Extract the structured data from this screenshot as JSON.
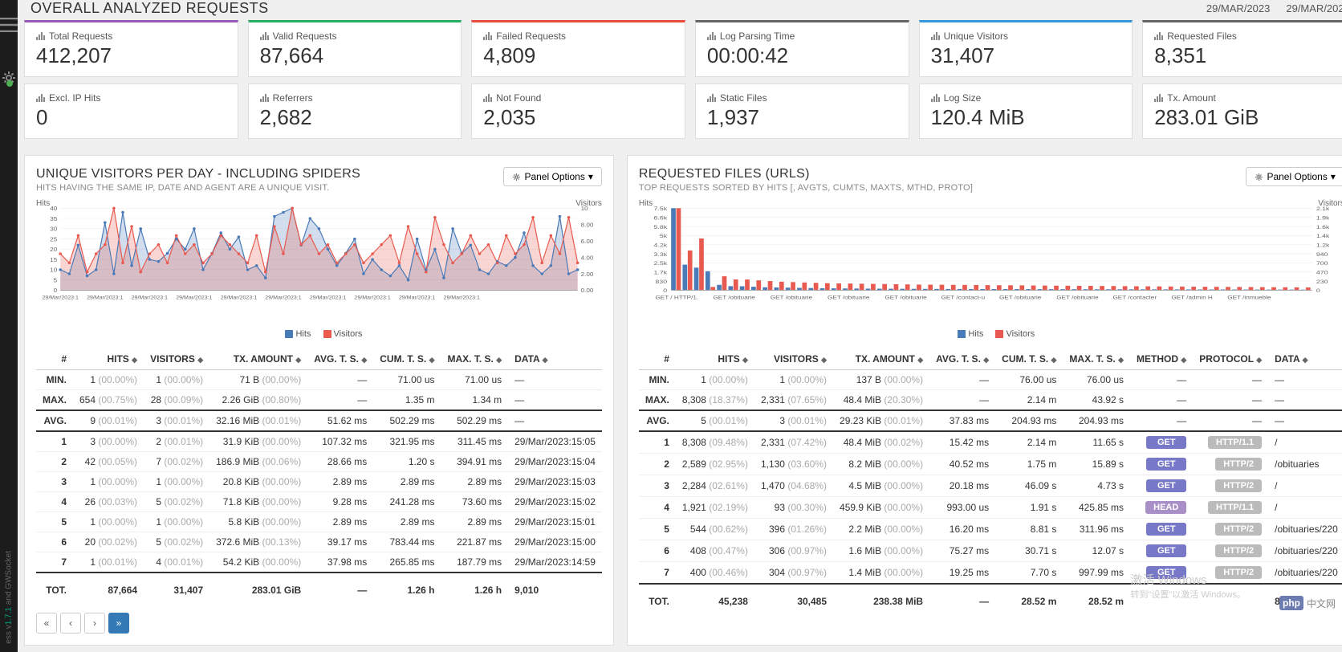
{
  "colors": {
    "sidebar_bg": "#1c1c1c",
    "hits": "#4a7ab8",
    "visitors": "#e85a4f",
    "grid": "#e8e8e8",
    "card_borders": [
      "#9b59b6",
      "#27ae60",
      "#e74c3c",
      "#666666",
      "#3498db",
      "#666666"
    ]
  },
  "header": {
    "title": "OVERALL ANALYZED REQUESTS",
    "date_from": "29/MAR/2023",
    "date_to": "29/MAR/2023"
  },
  "stats": [
    [
      {
        "label": "Total Requests",
        "value": "412,207"
      },
      {
        "label": "Excl. IP Hits",
        "value": "0"
      }
    ],
    [
      {
        "label": "Valid Requests",
        "value": "87,664"
      },
      {
        "label": "Referrers",
        "value": "2,682"
      }
    ],
    [
      {
        "label": "Failed Requests",
        "value": "4,809"
      },
      {
        "label": "Not Found",
        "value": "2,035"
      }
    ],
    [
      {
        "label": "Log Parsing Time",
        "value": "00:00:42"
      },
      {
        "label": "Static Files",
        "value": "1,937"
      }
    ],
    [
      {
        "label": "Unique Visitors",
        "value": "31,407"
      },
      {
        "label": "Log Size",
        "value": "120.4 MiB"
      }
    ],
    [
      {
        "label": "Requested Files",
        "value": "8,351"
      },
      {
        "label": "Tx. Amount",
        "value": "283.01 GiB"
      }
    ]
  ],
  "panel_options_label": "Panel Options",
  "legend": {
    "hits": "Hits",
    "visitors": "Visitors"
  },
  "left_panel": {
    "title": "UNIQUE VISITORS PER DAY - INCLUDING SPIDERS",
    "subtitle": "HITS HAVING THE SAME IP, DATE AND AGENT ARE A UNIQUE VISIT.",
    "chart": {
      "type": "line-dual",
      "ylab_l": "Hits",
      "ylab_r": "Visitors",
      "y_left_ticks": [
        0,
        5,
        10,
        15,
        20,
        25,
        30,
        35,
        40
      ],
      "y_right_ticks": [
        "0.00",
        "2.00",
        "4.00",
        "6.00",
        "8.00",
        "10"
      ],
      "x_labels": [
        "29/Mar/2023:1",
        "29/Mar/2023:1",
        "29/Mar/2023:1",
        "29/Mar/2023:1",
        "29/Mar/2023:1",
        "29/Mar/2023:1",
        "29/Mar/2023:1",
        "29/Mar/2023:1",
        "29/Mar/2023:1",
        "29/Mar/2023:1"
      ],
      "hits": [
        10,
        8,
        22,
        7,
        10,
        33,
        8,
        38,
        12,
        30,
        15,
        14,
        18,
        25,
        20,
        30,
        10,
        18,
        28,
        20,
        26,
        10,
        12,
        6,
        36,
        38,
        40,
        22,
        35,
        30,
        20,
        12,
        18,
        25,
        8,
        15,
        10,
        7,
        12,
        5,
        25,
        10,
        20,
        6,
        30,
        18,
        22,
        10,
        8,
        14,
        12,
        16,
        28,
        12,
        8,
        12,
        36,
        8,
        10
      ],
      "visitors": [
        4,
        3,
        6,
        2,
        4,
        5,
        9,
        3,
        7,
        2,
        4,
        5,
        3,
        6,
        4,
        5,
        3,
        4,
        6,
        5,
        4,
        3,
        6,
        2,
        7,
        4,
        9,
        5,
        6,
        4,
        5,
        3,
        4,
        5,
        3,
        4,
        5,
        6,
        3,
        7,
        4,
        2,
        8,
        5,
        3,
        4,
        6,
        4,
        5,
        3,
        6,
        4,
        5,
        8,
        3,
        6,
        4,
        8,
        3
      ]
    },
    "columns": [
      "#",
      "HITS",
      "VISITORS",
      "TX. AMOUNT",
      "AVG. T. S.",
      "CUM. T. S.",
      "MAX. T. S.",
      "DATA"
    ],
    "summary": [
      {
        "k": "MIN.",
        "hits": "1",
        "hits_p": "(00.00%)",
        "vis": "1",
        "vis_p": "(00.00%)",
        "tx": "71 B",
        "tx_p": "(00.00%)",
        "avg": "—",
        "cum": "71.00 us",
        "max": "71.00 us",
        "data": "—"
      },
      {
        "k": "MAX.",
        "hits": "654",
        "hits_p": "(00.75%)",
        "vis": "28",
        "vis_p": "(00.09%)",
        "tx": "2.26 GiB",
        "tx_p": "(00.80%)",
        "avg": "—",
        "cum": "1.35 m",
        "max": "1.34 m",
        "data": "—"
      },
      {
        "k": "AVG.",
        "hits": "9",
        "hits_p": "(00.01%)",
        "vis": "3",
        "vis_p": "(00.01%)",
        "tx": "32.16 MiB",
        "tx_p": "(00.01%)",
        "avg": "51.62 ms",
        "cum": "502.29 ms",
        "max": "502.29 ms",
        "data": "—"
      }
    ],
    "rows": [
      {
        "n": "1",
        "hits": "3",
        "hits_p": "(00.00%)",
        "vis": "2",
        "vis_p": "(00.01%)",
        "tx": "31.9 KiB",
        "tx_p": "(00.00%)",
        "avg": "107.32 ms",
        "cum": "321.95 ms",
        "max": "311.45 ms",
        "data": "29/Mar/2023:15:05"
      },
      {
        "n": "2",
        "hits": "42",
        "hits_p": "(00.05%)",
        "vis": "7",
        "vis_p": "(00.02%)",
        "tx": "186.9 MiB",
        "tx_p": "(00.06%)",
        "avg": "28.66 ms",
        "cum": "1.20 s",
        "max": "394.91 ms",
        "data": "29/Mar/2023:15:04"
      },
      {
        "n": "3",
        "hits": "1",
        "hits_p": "(00.00%)",
        "vis": "1",
        "vis_p": "(00.00%)",
        "tx": "20.8 KiB",
        "tx_p": "(00.00%)",
        "avg": "2.89 ms",
        "cum": "2.89 ms",
        "max": "2.89 ms",
        "data": "29/Mar/2023:15:03"
      },
      {
        "n": "4",
        "hits": "26",
        "hits_p": "(00.03%)",
        "vis": "5",
        "vis_p": "(00.02%)",
        "tx": "71.8 KiB",
        "tx_p": "(00.00%)",
        "avg": "9.28 ms",
        "cum": "241.28 ms",
        "max": "73.60 ms",
        "data": "29/Mar/2023:15:02"
      },
      {
        "n": "5",
        "hits": "1",
        "hits_p": "(00.00%)",
        "vis": "1",
        "vis_p": "(00.00%)",
        "tx": "5.8 KiB",
        "tx_p": "(00.00%)",
        "avg": "2.89 ms",
        "cum": "2.89 ms",
        "max": "2.89 ms",
        "data": "29/Mar/2023:15:01"
      },
      {
        "n": "6",
        "hits": "20",
        "hits_p": "(00.02%)",
        "vis": "5",
        "vis_p": "(00.02%)",
        "tx": "372.6 MiB",
        "tx_p": "(00.13%)",
        "avg": "39.17 ms",
        "cum": "783.44 ms",
        "max": "221.87 ms",
        "data": "29/Mar/2023:15:00"
      },
      {
        "n": "7",
        "hits": "1",
        "hits_p": "(00.01%)",
        "vis": "4",
        "vis_p": "(00.01%)",
        "tx": "54.2 KiB",
        "tx_p": "(00.00%)",
        "avg": "37.98 ms",
        "cum": "265.85 ms",
        "max": "187.79 ms",
        "data": "29/Mar/2023:14:59"
      }
    ],
    "totals": {
      "k": "TOT.",
      "hits": "87,664",
      "vis": "31,407",
      "tx": "283.01 GiB",
      "avg": "—",
      "cum": "1.26 h",
      "max": "1.26 h",
      "data": "9,010"
    }
  },
  "right_panel": {
    "title": "REQUESTED FILES (URLS)",
    "subtitle": "TOP REQUESTS SORTED BY HITS [, AVGTS, CUMTS, MAXTS, MTHD, PROTO]",
    "chart": {
      "type": "bar-dual",
      "ylab_l": "Hits",
      "ylab_r": "Visitors",
      "y_left_ticks": [
        "0",
        "830",
        "1.7k",
        "2.5k",
        "3.3k",
        "4.2k",
        "5k",
        "5.8k",
        "6.6k",
        "7.5k"
      ],
      "y_right_ticks": [
        "0",
        "230",
        "470",
        "700",
        "940",
        "1.2k",
        "1.4k",
        "1.6k",
        "1.9k",
        "2.1k"
      ],
      "x_labels": [
        "GET / HTTP/1.",
        "GET /obituarie",
        "GET /obituarie",
        "GET /obituarie",
        "GET /obituarie",
        "GET /contact-u",
        "GET /obituarie",
        "GET /obituarie",
        "GET /contacter",
        "GET /admin H",
        "GET /inmueble"
      ],
      "hits": [
        8300,
        2589,
        2284,
        1921,
        544,
        408,
        400,
        350,
        300,
        280,
        260,
        240,
        220,
        200,
        190,
        180,
        170,
        160,
        155,
        150,
        145,
        140,
        135,
        130,
        128,
        125,
        122,
        120,
        118,
        115,
        112,
        110,
        108,
        105,
        103,
        100,
        98,
        96,
        94,
        92,
        90,
        88,
        86,
        84,
        82,
        80,
        78,
        76,
        74,
        72,
        70,
        68,
        66,
        64,
        62,
        60
      ],
      "visitors": [
        2331,
        1130,
        1470,
        93,
        396,
        306,
        304,
        280,
        260,
        240,
        230,
        220,
        210,
        200,
        195,
        190,
        185,
        180,
        175,
        170,
        165,
        160,
        158,
        155,
        152,
        150,
        148,
        145,
        142,
        140,
        138,
        135,
        132,
        130,
        128,
        125,
        122,
        120,
        118,
        115,
        112,
        110,
        108,
        105,
        103,
        100,
        98,
        96,
        94,
        92,
        90,
        88,
        86,
        84,
        82,
        80
      ]
    },
    "columns": [
      "#",
      "HITS",
      "VISITORS",
      "TX. AMOUNT",
      "AVG. T. S.",
      "CUM. T. S.",
      "MAX. T. S.",
      "METHOD",
      "PROTOCOL",
      "DATA"
    ],
    "summary": [
      {
        "k": "MIN.",
        "hits": "1",
        "hits_p": "(00.00%)",
        "vis": "1",
        "vis_p": "(00.00%)",
        "tx": "137 B",
        "tx_p": "(00.00%)",
        "avg": "—",
        "cum": "76.00 us",
        "max": "76.00 us",
        "method": "—",
        "proto": "—",
        "data": "—"
      },
      {
        "k": "MAX.",
        "hits": "8,308",
        "hits_p": "(18.37%)",
        "vis": "2,331",
        "vis_p": "(07.65%)",
        "tx": "48.4 MiB",
        "tx_p": "(20.30%)",
        "avg": "—",
        "cum": "2.14 m",
        "max": "43.92 s",
        "method": "—",
        "proto": "—",
        "data": "—"
      },
      {
        "k": "AVG.",
        "hits": "5",
        "hits_p": "(00.01%)",
        "vis": "3",
        "vis_p": "(00.01%)",
        "tx": "29.23 KiB",
        "tx_p": "(00.01%)",
        "avg": "37.83 ms",
        "cum": "204.93 ms",
        "max": "204.93 ms",
        "method": "—",
        "proto": "—",
        "data": "—"
      }
    ],
    "rows": [
      {
        "n": "1",
        "hits": "8,308",
        "hits_p": "(09.48%)",
        "vis": "2,331",
        "vis_p": "(07.42%)",
        "tx": "48.4 MiB",
        "tx_p": "(00.02%)",
        "avg": "15.42 ms",
        "cum": "2.14 m",
        "max": "11.65 s",
        "method": "GET",
        "proto": "HTTP/1.1",
        "data": "/"
      },
      {
        "n": "2",
        "hits": "2,589",
        "hits_p": "(02.95%)",
        "vis": "1,130",
        "vis_p": "(03.60%)",
        "tx": "8.2 MiB",
        "tx_p": "(00.00%)",
        "avg": "40.52 ms",
        "cum": "1.75 m",
        "max": "15.89 s",
        "method": "GET",
        "proto": "HTTP/2",
        "data": "/obituaries"
      },
      {
        "n": "3",
        "hits": "2,284",
        "hits_p": "(02.61%)",
        "vis": "1,470",
        "vis_p": "(04.68%)",
        "tx": "4.5 MiB",
        "tx_p": "(00.00%)",
        "avg": "20.18 ms",
        "cum": "46.09 s",
        "max": "4.73 s",
        "method": "GET",
        "proto": "HTTP/2",
        "data": "/"
      },
      {
        "n": "4",
        "hits": "1,921",
        "hits_p": "(02.19%)",
        "vis": "93",
        "vis_p": "(00.30%)",
        "tx": "459.9 KiB",
        "tx_p": "(00.00%)",
        "avg": "993.00 us",
        "cum": "1.91 s",
        "max": "425.85 ms",
        "method": "HEAD",
        "proto": "HTTP/1.1",
        "data": "/"
      },
      {
        "n": "5",
        "hits": "544",
        "hits_p": "(00.62%)",
        "vis": "396",
        "vis_p": "(01.26%)",
        "tx": "2.2 MiB",
        "tx_p": "(00.00%)",
        "avg": "16.20 ms",
        "cum": "8.81 s",
        "max": "311.96 ms",
        "method": "GET",
        "proto": "HTTP/2",
        "data": "/obituaries/220"
      },
      {
        "n": "6",
        "hits": "408",
        "hits_p": "(00.47%)",
        "vis": "306",
        "vis_p": "(00.97%)",
        "tx": "1.6 MiB",
        "tx_p": "(00.00%)",
        "avg": "75.27 ms",
        "cum": "30.71 s",
        "max": "12.07 s",
        "method": "GET",
        "proto": "HTTP/2",
        "data": "/obituaries/220"
      },
      {
        "n": "7",
        "hits": "400",
        "hits_p": "(00.46%)",
        "vis": "304",
        "vis_p": "(00.97%)",
        "tx": "1.4 MiB",
        "tx_p": "(00.00%)",
        "avg": "19.25 ms",
        "cum": "7.70 s",
        "max": "997.99 ms",
        "method": "GET",
        "proto": "HTTP/2",
        "data": "/obituaries/220"
      }
    ],
    "totals": {
      "k": "TOT.",
      "hits": "45,238",
      "vis": "30,485",
      "tx": "238.38 MiB",
      "avg": "—",
      "cum": "28.52 m",
      "max": "28.52 m",
      "method": "",
      "proto": "",
      "data": "8,351"
    }
  },
  "watermark": {
    "line1": "激活 Windows",
    "line2": "转到\"设置\"以激活 Windows。"
  },
  "logo": {
    "php": "php",
    "cn": "中文网"
  }
}
